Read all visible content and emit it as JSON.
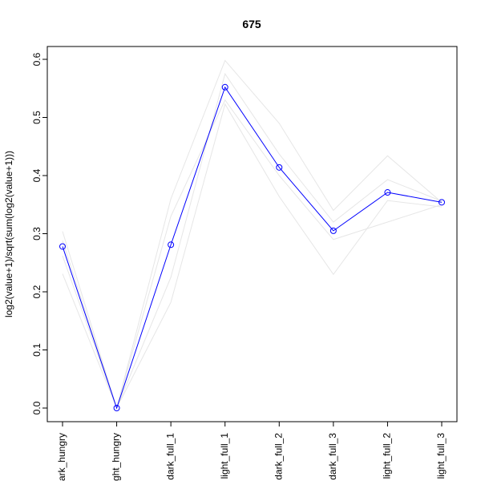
{
  "chart_data": {
    "type": "line",
    "title": "675",
    "xlabel": "",
    "ylabel": "log2(value+1)/sqrt(sum(log2(value+1)))",
    "categories": [
      "dark_hungry",
      "light_hungry",
      "dark_full_1",
      "light_full_1",
      "dark_full_2",
      "dark_full_3",
      "light_full_2",
      "light_full_3"
    ],
    "category_labels_shown": [
      "ark_hungry",
      "ght_hungry",
      "dark_full_1",
      "light_full_1",
      "dark_full_2",
      "dark_full_3",
      "light_full_2",
      "light_full_3"
    ],
    "ylim": [
      -0.02,
      0.62
    ],
    "yticks": [
      0.0,
      0.1,
      0.2,
      0.3,
      0.4,
      0.5,
      0.6
    ],
    "ytick_labels": [
      "0.0",
      "0.1",
      "0.2",
      "0.3",
      "0.4",
      "0.5",
      "0.6"
    ],
    "grid": false,
    "series": [
      {
        "values": [
          0.278,
          0.0,
          0.281,
          0.552,
          0.414,
          0.305,
          0.371,
          0.354
        ],
        "color": "#0000ff",
        "marker": "open-circle"
      }
    ],
    "background_series": [
      {
        "values": [
          0.304,
          0.0,
          0.36,
          0.598,
          0.49,
          0.34,
          0.434,
          0.354
        ]
      },
      {
        "values": [
          0.231,
          0.0,
          0.182,
          0.523,
          0.364,
          0.23,
          0.357,
          0.346
        ]
      },
      {
        "values": [
          0.288,
          0.0,
          0.225,
          0.575,
          0.437,
          0.32,
          0.393,
          0.356
        ]
      },
      {
        "values": [
          0.262,
          0.0,
          0.33,
          0.53,
          0.4,
          0.29,
          0.32,
          0.35
        ]
      }
    ],
    "background_color": "#e6e6e6"
  }
}
